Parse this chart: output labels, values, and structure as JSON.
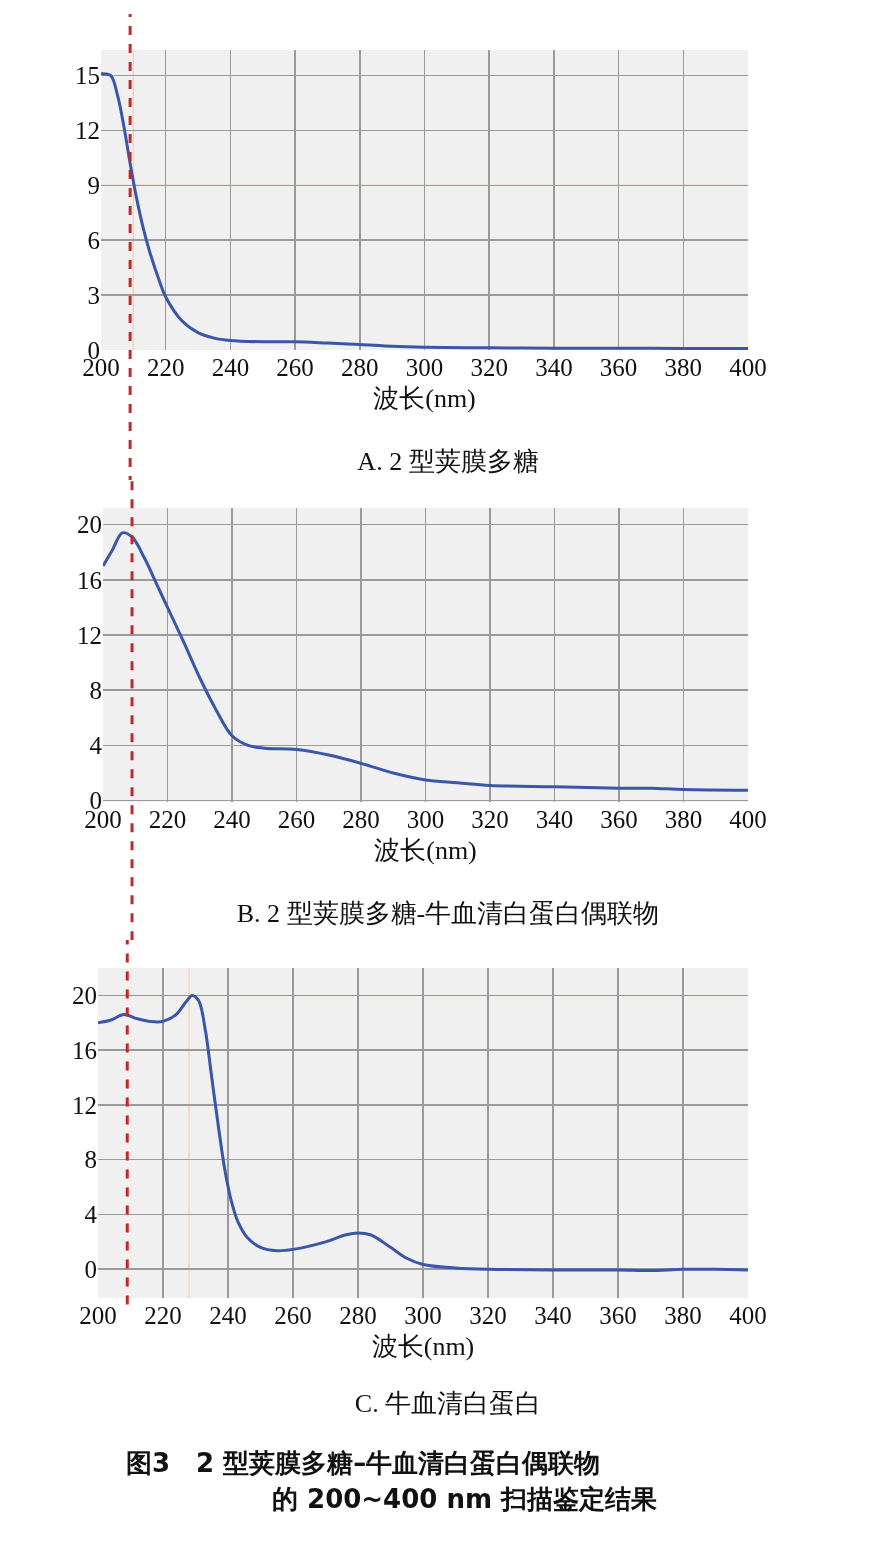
{
  "chart_data": [
    {
      "type": "line",
      "title": "A. 2 型荚膜多糖",
      "xlabel": "波长(nm)",
      "xlim": [
        200,
        400
      ],
      "xticks": [
        200,
        220,
        240,
        260,
        280,
        300,
        320,
        340,
        360,
        380,
        400
      ],
      "ylim": [
        0,
        16.4
      ],
      "yticks": [
        0,
        3,
        6,
        9,
        12,
        15
      ],
      "grid": true,
      "x": [
        200,
        203,
        205,
        207,
        209,
        211,
        213,
        215,
        218,
        220,
        225,
        230,
        235,
        240,
        250,
        260,
        270,
        280,
        290,
        300,
        320,
        340,
        360,
        380,
        400
      ],
      "series": [
        {
          "color": "#3a56a8",
          "values": [
            15.1,
            15.0,
            14.0,
            12.3,
            10.2,
            8.3,
            6.7,
            5.4,
            3.8,
            2.9,
            1.6,
            0.95,
            0.65,
            0.52,
            0.45,
            0.45,
            0.38,
            0.3,
            0.2,
            0.15,
            0.12,
            0.1,
            0.1,
            0.08,
            0.08
          ]
        }
      ],
      "ref_lines": [
        {
          "axis": "x",
          "value": 209,
          "color": "#c0282d",
          "line_style": "dashed"
        },
        {
          "axis": "x",
          "value": 210,
          "color": "#f5d5b5"
        },
        {
          "axis": "y",
          "value": 9,
          "color": "#f5d5b5"
        }
      ]
    },
    {
      "type": "line",
      "title": "B. 2 型荚膜多糖-牛血清白蛋白偶联物",
      "xlabel": "波长(nm)",
      "xlim": [
        200,
        400
      ],
      "xticks": [
        200,
        220,
        240,
        260,
        280,
        300,
        320,
        340,
        360,
        380,
        400
      ],
      "ylim": [
        -0.1,
        21.2
      ],
      "yticks": [
        0,
        4,
        8,
        12,
        16,
        20
      ],
      "grid": true,
      "x": [
        200,
        203,
        206,
        209,
        213,
        217,
        220,
        225,
        230,
        235,
        240,
        245,
        250,
        260,
        270,
        280,
        290,
        300,
        310,
        320,
        340,
        360,
        370,
        380,
        400
      ],
      "series": [
        {
          "color": "#3a56a8",
          "values": [
            17.0,
            18.2,
            19.4,
            19.1,
            17.5,
            15.5,
            14.0,
            11.5,
            8.9,
            6.6,
            4.7,
            4.0,
            3.8,
            3.7,
            3.3,
            2.7,
            2.0,
            1.5,
            1.3,
            1.1,
            1.0,
            0.9,
            0.9,
            0.8,
            0.75
          ]
        }
      ],
      "ref_lines": [
        {
          "axis": "x",
          "value": 209,
          "color": "#c0282d",
          "line_style": "dashed"
        }
      ]
    },
    {
      "type": "line",
      "title": "C. 牛血清白蛋白",
      "xlabel": "波长(nm)",
      "xlim": [
        200,
        400
      ],
      "xticks": [
        200,
        220,
        240,
        260,
        280,
        300,
        320,
        340,
        360,
        380,
        400
      ],
      "ylim": [
        -2.1,
        22
      ],
      "yticks": [
        0,
        4,
        8,
        12,
        16,
        20
      ],
      "grid": true,
      "x": [
        200,
        204,
        208,
        212,
        216,
        220,
        224,
        227,
        229,
        231,
        233,
        235,
        237,
        239,
        241,
        243,
        246,
        250,
        255,
        260,
        270,
        276,
        280,
        284,
        290,
        295,
        300,
        310,
        320,
        340,
        360,
        370,
        380,
        390,
        400
      ],
      "series": [
        {
          "color": "#3a56a8",
          "values": [
            18.0,
            18.2,
            18.6,
            18.3,
            18.1,
            18.1,
            18.6,
            19.5,
            20.0,
            19.6,
            17.5,
            14.0,
            10.5,
            7.3,
            5.0,
            3.5,
            2.3,
            1.6,
            1.35,
            1.45,
            2.0,
            2.5,
            2.65,
            2.5,
            1.6,
            0.8,
            0.35,
            0.1,
            0.0,
            -0.05,
            -0.05,
            -0.1,
            0.0,
            0.0,
            -0.05
          ]
        }
      ],
      "ref_lines": [
        {
          "axis": "x",
          "value": 209,
          "color": "#c0282d",
          "line_style": "dashed"
        },
        {
          "axis": "x",
          "value": 228,
          "color": "#f5d5b5"
        },
        {
          "axis": "y",
          "value": 20,
          "color": "#f5d5b5"
        }
      ],
      "annotations": [
        "图3　2 型荚膜多糖–牛血清白蛋白偶联物",
        "的 200~400 nm 扫描鉴定结果"
      ]
    }
  ]
}
